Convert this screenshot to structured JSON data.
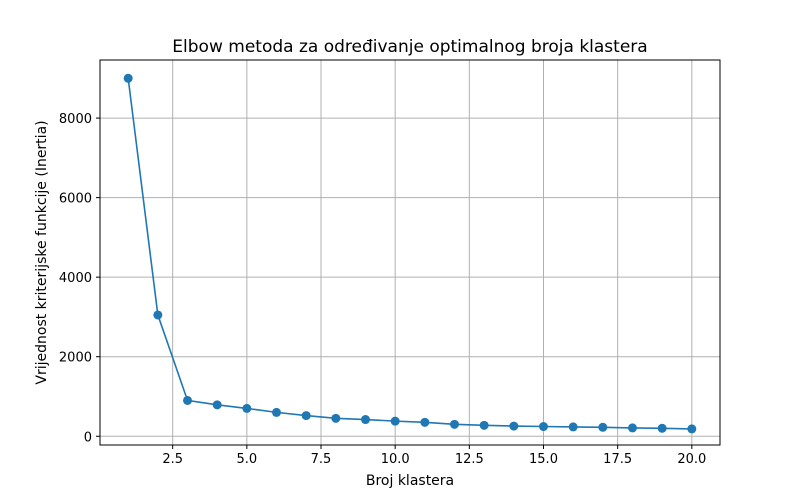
{
  "chart_data": {
    "type": "line",
    "title": "Elbow metoda za određivanje optimalnog broja klastera",
    "xlabel": "Broj klastera",
    "ylabel": "Vrijednost kriterijske funkcije (Inertia)",
    "xlim": [
      0.05,
      20.95
    ],
    "ylim": [
      -220,
      9460
    ],
    "grid": true,
    "x_ticks": [
      2.5,
      5.0,
      7.5,
      10.0,
      12.5,
      15.0,
      17.5,
      20.0
    ],
    "x_tick_labels": [
      "2.5",
      "5.0",
      "7.5",
      "10.0",
      "12.5",
      "15.0",
      "17.5",
      "20.0"
    ],
    "y_ticks": [
      0,
      2000,
      4000,
      6000,
      8000
    ],
    "y_tick_labels": [
      "0",
      "2000",
      "4000",
      "6000",
      "8000"
    ],
    "series": [
      {
        "color": "#1f77b4",
        "marker": "circle",
        "x": [
          1,
          2,
          3,
          4,
          5,
          6,
          7,
          8,
          9,
          10,
          11,
          12,
          13,
          14,
          15,
          16,
          17,
          18,
          19,
          20
        ],
        "y": [
          9000,
          3050,
          900,
          790,
          700,
          600,
          520,
          450,
          420,
          380,
          350,
          300,
          275,
          255,
          245,
          235,
          225,
          210,
          200,
          185
        ]
      }
    ]
  }
}
